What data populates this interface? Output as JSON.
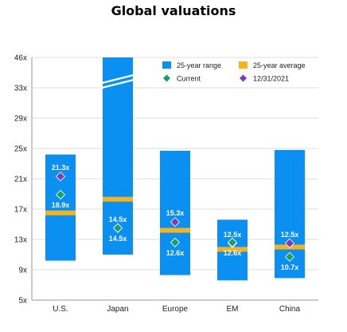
{
  "title": "Global valuations",
  "colors": {
    "range": "#0b8ff0",
    "average": "#f5b41f",
    "current": "#1a9e6b",
    "date": "#7b3fb5",
    "grid": "#dddddd",
    "axis": "#999999"
  },
  "legend": {
    "range": "25-year range",
    "average": "25-year average",
    "current": "Current",
    "date": "12/31/2021"
  },
  "chart_data": {
    "type": "bar",
    "title": "Global valuations",
    "ylim": [
      5,
      46
    ],
    "ytick_labels": [
      "5x",
      "9x",
      "13x",
      "17x",
      "21x",
      "25x",
      "29x",
      "33x",
      "46x"
    ],
    "y_axis_break": true,
    "grid": true,
    "legend_position": "top-right",
    "categories": [
      "U.S.",
      "Japan",
      "Europe",
      "EM",
      "China"
    ],
    "series": [
      {
        "name": "25-year range",
        "low": [
          10.2,
          11.0,
          8.3,
          7.6,
          7.9
        ],
        "high": [
          24.2,
          46,
          24.7,
          15.6,
          24.8
        ],
        "break": [
          false,
          true,
          false,
          false,
          false
        ]
      },
      {
        "name": "25-year average",
        "values": [
          16.5,
          18.3,
          14.2,
          11.7,
          12.0
        ]
      },
      {
        "name": "Current",
        "values": [
          18.9,
          14.5,
          12.6,
          12.6,
          10.7
        ],
        "labels": [
          "18.9x",
          "14.5x",
          "12.6x",
          "12.6x",
          "10.7x"
        ]
      },
      {
        "name": "12/31/2021",
        "values": [
          21.3,
          14.5,
          15.3,
          12.5,
          12.5
        ],
        "labels": [
          "21.3x",
          "14.5x",
          "15.3x",
          "12.5x",
          "12.5x"
        ]
      }
    ]
  }
}
